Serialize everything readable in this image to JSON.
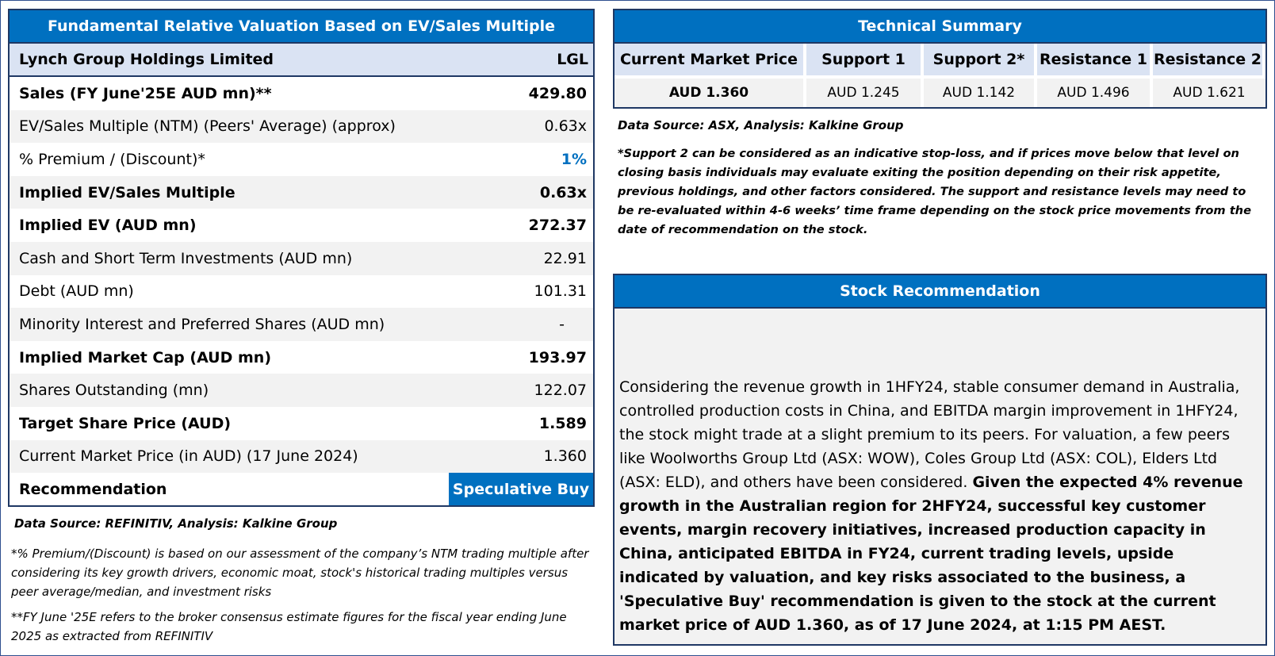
{
  "valuation": {
    "title": "Fundamental Relative Valuation Based on EV/Sales Multiple",
    "company": "Lynch Group Holdings Limited",
    "ticker": "LGL",
    "rows": [
      {
        "label": "Sales (FY June'25E AUD mn)**",
        "value": "429.80"
      },
      {
        "label": "EV/Sales Multiple (NTM)  (Peers' Average) (approx)",
        "value": "0.63x"
      },
      {
        "label": "% Premium / (Discount)*",
        "value": "1%"
      },
      {
        "label": "Implied EV/Sales Multiple",
        "value": "0.63x"
      },
      {
        "label": "Implied EV (AUD mn)",
        "value": "272.37"
      },
      {
        "label": "Cash and Short Term Investments (AUD mn)",
        "value": "22.91"
      },
      {
        "label": "Debt (AUD mn)",
        "value": "101.31"
      },
      {
        "label": "Minority Interest and Preferred Shares (AUD mn)",
        "value": "-"
      },
      {
        "label": "Implied Market Cap (AUD mn)",
        "value": "193.97"
      },
      {
        "label": "Shares Outstanding (mn)",
        "value": "122.07"
      },
      {
        "label": "Target Share Price (AUD)",
        "value": "1.589"
      },
      {
        "label": "Current Market Price (in AUD) (17 June 2024)",
        "value": "1.360"
      }
    ],
    "recommendation_label": "Recommendation",
    "recommendation_value": "Speculative Buy",
    "source": "Data Source: REFINITIV, Analysis: Kalkine Group",
    "footnote1": "*% Premium/(Discount) is based on our assessment of the company’s NTM trading multiple after considering its key growth drivers, economic moat, stock's historical trading multiples versus peer average/median, and investment risks",
    "footnote2": "**FY June '25E refers to the broker consensus estimate figures for the fiscal year ending June 2025  as extracted from REFINITIV"
  },
  "technical": {
    "title": "Technical Summary",
    "headers": [
      "Current Market Price",
      "Support 1",
      "Support 2*",
      "Resistance 1",
      "Resistance 2"
    ],
    "values": [
      "AUD 1.360",
      "AUD 1.245",
      "AUD 1.142",
      "AUD 1.496",
      "AUD 1.621"
    ],
    "source": "Data Source: ASX, Analysis: Kalkine Group",
    "note": "*Support 2 can be considered as an indicative stop-loss, and if prices move below that level on closing basis individuals may evaluate exiting the position depending on their risk appetite, previous holdings, and other factors considered. The support and resistance levels may need to be re-evaluated within 4-6 weeks’ time frame depending on the stock price movements from the date of recommendation on the stock."
  },
  "stock_recommendation": {
    "title": "Stock Recommendation",
    "text_normal": "Considering the revenue growth in 1HFY24, stable consumer demand in Australia, controlled production costs in China, and EBITDA margin improvement in 1HFY24, the stock might trade at a slight premium to its peers. For valuation, a few peers like Woolworths Group Ltd (ASX: WOW), Coles Group Ltd (ASX: COL), Elders Ltd (ASX: ELD), and others have been considered. ",
    "text_bold": "Given the expected 4% revenue growth in the Australian region for 2HFY24, successful key customer events, margin recovery initiatives, increased production capacity in China, anticipated EBITDA in FY24, current trading levels, upside indicated by valuation, and key risks associated to the business, a 'Speculative Buy' recommendation is given to the stock at the current market price of AUD 1.360, as of 17 June 2024, at 1:15 PM AEST."
  },
  "colors": {
    "accent": "#0070c0",
    "header_bg": "#dae3f3",
    "alt_row": "#f2f2f2",
    "border": "#1f3864"
  }
}
